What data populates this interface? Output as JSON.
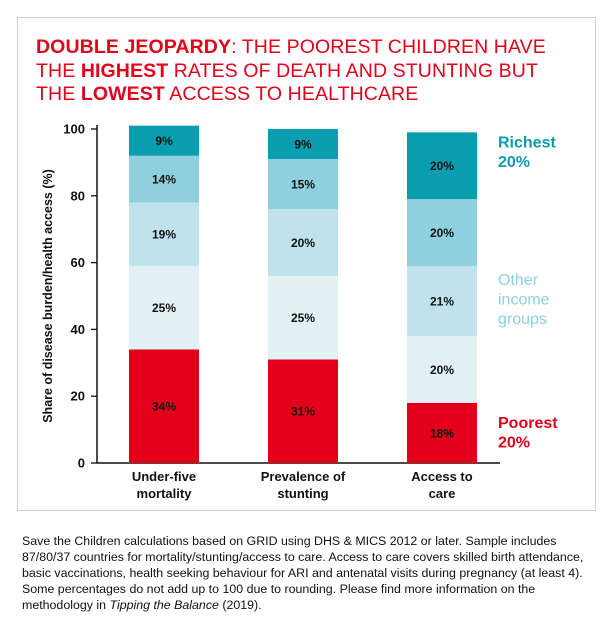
{
  "title": {
    "line1": [
      {
        "text": "DOUBLE JEOPARDY",
        "bold": true
      },
      {
        "text": ": THE POOREST CHILDREN HAVE",
        "bold": false
      }
    ],
    "line2": [
      {
        "text": "THE ",
        "bold": false
      },
      {
        "text": "HIGHEST",
        "bold": true
      },
      {
        "text": " RATES OF DEATH AND STUNTING BUT",
        "bold": false
      }
    ],
    "line3": [
      {
        "text": "THE ",
        "bold": false
      },
      {
        "text": "LOWEST",
        "bold": true
      },
      {
        "text": " ACCESS TO HEALTHCARE",
        "bold": false
      }
    ]
  },
  "colors": {
    "title": "#e2001a",
    "poorest": "#e2001a",
    "lower_middle": "#e3f1f5",
    "middle": "#bfe2ec",
    "upper_middle": "#8fd0df",
    "richest": "#0a9db0",
    "legend_richest": "#0a9db0",
    "legend_other": "#8fd0df",
    "legend_poorest": "#e2001a"
  },
  "chart_data": {
    "type": "bar",
    "stacked": true,
    "ylabel": "Share of disease burden/health access (%)",
    "ylim": [
      0,
      100
    ],
    "yticks": [
      0,
      20,
      40,
      60,
      80,
      100
    ],
    "grid": false,
    "categories": [
      [
        "Under-five",
        "mortality"
      ],
      [
        "Prevalence of",
        "stunting"
      ],
      [
        "Access to",
        "care"
      ]
    ],
    "series": [
      {
        "key": "poorest",
        "values": [
          34,
          31,
          18
        ]
      },
      {
        "key": "lower_middle",
        "values": [
          25,
          25,
          20
        ]
      },
      {
        "key": "middle",
        "values": [
          19,
          20,
          21
        ]
      },
      {
        "key": "upper_middle",
        "values": [
          14,
          15,
          20
        ]
      },
      {
        "key": "richest",
        "values": [
          9,
          9,
          20
        ]
      }
    ],
    "label_suffix": "%",
    "legend": [
      {
        "lines": [
          "Richest",
          "20%"
        ],
        "color_key": "legend_richest",
        "bold": true,
        "anchor_value": 93
      },
      {
        "lines": [
          "Other",
          "income",
          "groups"
        ],
        "color_key": "legend_other",
        "bold": false,
        "anchor_value": 49
      },
      {
        "lines": [
          "Poorest",
          "20%"
        ],
        "color_key": "legend_poorest",
        "bold": true,
        "anchor_value": 9
      }
    ],
    "legend_placement": "right"
  },
  "caption": {
    "before_italic": "Save the Children calculations based on GRID using DHS & MICS 2012 or later. Sample includes 87/80/37 countries for mortality/stunting/access to care. Access to care covers skilled birth attendance, basic vaccinations, health seeking behaviour for ARI and antenatal visits during pregnancy (at least 4). Some percentages do not add up to 100 due to rounding. Please find more information on the methodology in ",
    "italic": "Tipping the Balance",
    "after_italic": " (2019)."
  }
}
